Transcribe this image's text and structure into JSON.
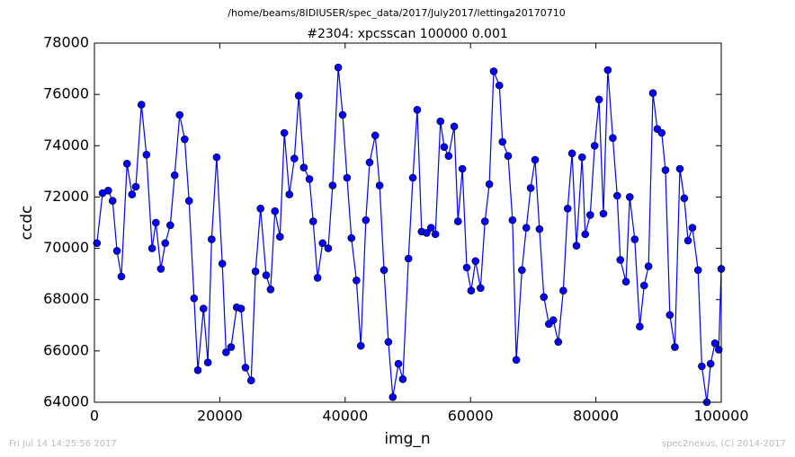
{
  "header": {
    "path": "/home/beams/8IDIUSER/spec_data/2017/July2017/lettinga20170710"
  },
  "footer": {
    "timestamp": "Fri Jul 14 14:25:56 2017",
    "credit": "spec2nexus, (C) 2014-2017"
  },
  "chart_data": {
    "type": "line",
    "title": "#2304: xpcsscan 100000 0.001",
    "xlabel": "img_n",
    "ylabel": "ccdc",
    "color": "#0000ff",
    "marker": true,
    "xlim": [
      0,
      100000
    ],
    "xticks": [
      0,
      20000,
      40000,
      60000,
      80000,
      100000
    ],
    "ylim": [
      64000,
      78000
    ],
    "yticks": [
      64000,
      66000,
      68000,
      70000,
      72000,
      74000,
      76000,
      78000
    ],
    "x": [
      400,
      1300,
      2200,
      2900,
      3600,
      4300,
      5200,
      6000,
      6600,
      7500,
      8300,
      9200,
      9800,
      10600,
      11300,
      12100,
      12800,
      13600,
      14400,
      15100,
      15900,
      16500,
      17400,
      18100,
      18700,
      19500,
      20400,
      21000,
      21800,
      22700,
      23400,
      24100,
      25000,
      25700,
      26500,
      27400,
      28100,
      28800,
      29600,
      30300,
      31100,
      31900,
      32600,
      33400,
      34300,
      34900,
      35600,
      36400,
      37300,
      38000,
      38900,
      39600,
      40300,
      41000,
      41800,
      42500,
      43300,
      43900,
      44800,
      45500,
      46200,
      46900,
      47600,
      48500,
      49200,
      50100,
      50800,
      51500,
      52200,
      53000,
      53700,
      54400,
      55200,
      55800,
      56500,
      57400,
      58000,
      58700,
      59400,
      60100,
      60800,
      61600,
      62300,
      63000,
      63700,
      64600,
      65100,
      66000,
      66700,
      67300,
      68200,
      68900,
      69600,
      70300,
      71000,
      71700,
      72500,
      73200,
      74000,
      74800,
      75500,
      76200,
      76900,
      77800,
      78300,
      79100,
      79800,
      80500,
      81200,
      81900,
      82700,
      83400,
      83900,
      84800,
      85400,
      86200,
      87000,
      87700,
      88400,
      89100,
      89800,
      90500,
      91100,
      91800,
      92600,
      93400,
      94100,
      94700,
      95400,
      96300,
      96900,
      97700,
      98300,
      99000,
      99600,
      100000
    ],
    "values": [
      70200,
      72150,
      72250,
      71850,
      69900,
      68900,
      73300,
      72100,
      72400,
      75600,
      73650,
      70000,
      71000,
      69200,
      70200,
      70900,
      72850,
      75200,
      74250,
      71850,
      68050,
      65250,
      67650,
      65550,
      70350,
      73550,
      69400,
      65950,
      66150,
      67700,
      67650,
      65350,
      64850,
      69100,
      71550,
      68950,
      68400,
      71450,
      70450,
      74500,
      72100,
      73500,
      75950,
      73150,
      72700,
      71050,
      68850,
      70200,
      70000,
      72450,
      77050,
      75200,
      72750,
      70400,
      68750,
      66200,
      71100,
      73350,
      74400,
      72450,
      69150,
      66350,
      64200,
      65500,
      64900,
      69600,
      72750,
      75400,
      70650,
      70600,
      70800,
      70550,
      74950,
      73950,
      73600,
      74750,
      71050,
      73100,
      69250,
      68350,
      69500,
      68450,
      71050,
      72500,
      76900,
      76350,
      74150,
      73600,
      71100,
      65650,
      69150,
      70800,
      72350,
      73450,
      70750,
      68100,
      67050,
      67200,
      66350,
      68350,
      71550,
      73700,
      70100,
      73550,
      70550,
      71300,
      74000,
      75800,
      71350,
      76950,
      74300,
      72050,
      69550,
      68700,
      72000,
      70350,
      66950,
      68550,
      69300,
      76050,
      74650,
      74500,
      73050,
      67400,
      66150,
      73100,
      71950,
      70300,
      70800,
      69150,
      65400,
      64000,
      65500,
      66300,
      66050,
      69200
    ]
  }
}
